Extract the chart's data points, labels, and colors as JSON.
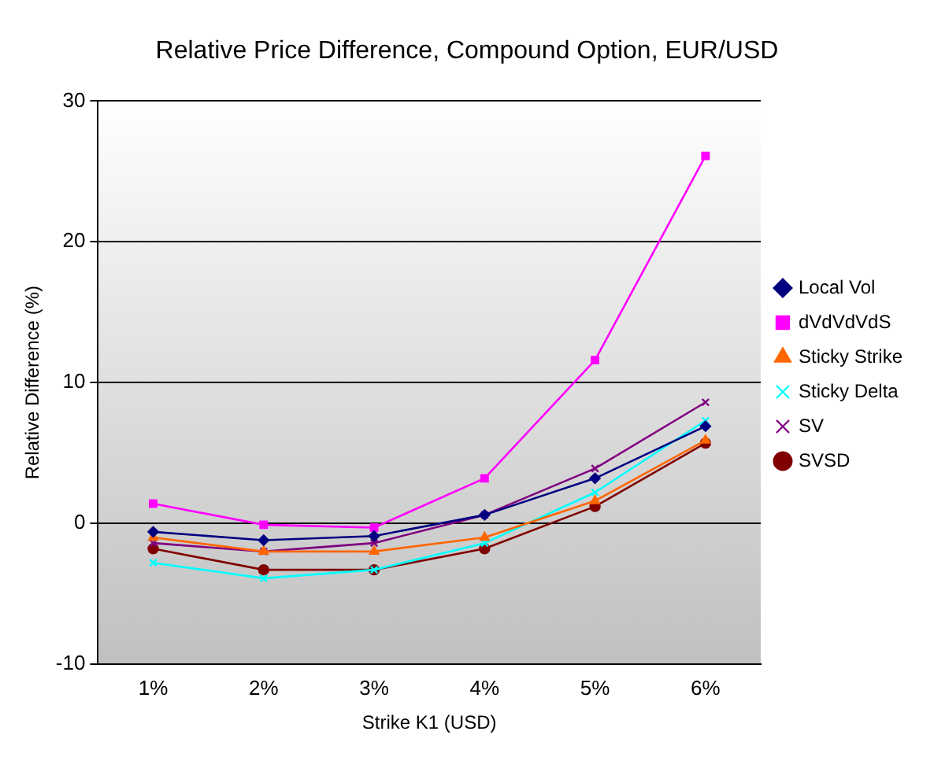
{
  "chart_data": {
    "type": "line",
    "title": "Relative Price Difference, Compound Option, EUR/USD",
    "xlabel": "Strike K1 (USD)",
    "ylabel": "Relative Difference (%)",
    "categories": [
      "1%",
      "2%",
      "3%",
      "4%",
      "5%",
      "6%"
    ],
    "series": [
      {
        "name": "Local Vol",
        "color": "#000080",
        "marker": "diamond",
        "values": [
          -0.6,
          -1.2,
          -0.9,
          0.6,
          3.2,
          6.9
        ]
      },
      {
        "name": "dVdVdVdS",
        "color": "#ff00ff",
        "marker": "square",
        "values": [
          1.4,
          -0.1,
          -0.3,
          3.2,
          11.6,
          26.1
        ]
      },
      {
        "name": "Sticky Strike",
        "color": "#ff6600",
        "marker": "triangle",
        "values": [
          -1.0,
          -2.0,
          -2.0,
          -1.0,
          1.6,
          5.9
        ]
      },
      {
        "name": "Sticky Delta",
        "color": "#00ffff",
        "marker": "cross",
        "values": [
          -2.8,
          -3.9,
          -3.3,
          -1.4,
          2.2,
          7.3
        ]
      },
      {
        "name": "SV",
        "color": "#800080",
        "marker": "cross",
        "values": [
          -1.4,
          -2.0,
          -1.4,
          0.6,
          3.9,
          8.6
        ]
      },
      {
        "name": "SVSD",
        "color": "#800000",
        "marker": "circle",
        "values": [
          -1.8,
          -3.3,
          -3.3,
          -1.8,
          1.2,
          5.7
        ]
      }
    ],
    "ylim": [
      -10,
      30
    ],
    "yticks": [
      -10,
      0,
      10,
      20,
      30
    ],
    "grid": "y",
    "legend": "right",
    "line_style": "solid"
  }
}
